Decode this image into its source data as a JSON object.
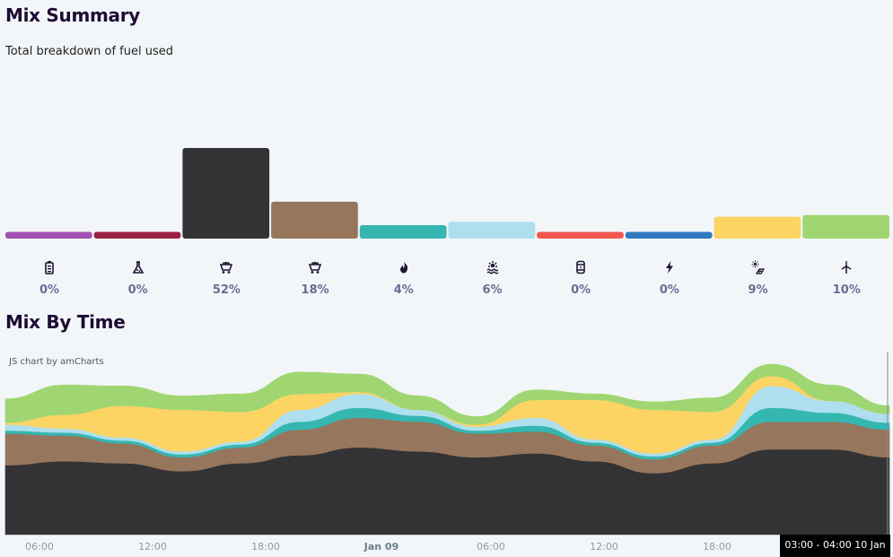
{
  "summary": {
    "title": "Mix Summary",
    "subtitle": "Total breakdown of fuel used"
  },
  "time": {
    "title": "Mix By Time",
    "credit": "JS chart by amCharts",
    "x_ticks": [
      "06:00",
      "12:00",
      "18:00",
      "Jan 09",
      "06:00",
      "12:00",
      "18:00"
    ],
    "tooltip": "03:00 - 04:00 10 Jan"
  },
  "fuels": [
    {
      "icon": "battery-icon",
      "pct": "0%",
      "color": "#a44fb3"
    },
    {
      "icon": "flask-icon",
      "pct": "0%",
      "color": "#9c2040"
    },
    {
      "icon": "coal-cart-icon",
      "pct": "52%",
      "color": "#333335"
    },
    {
      "icon": "coal-cart-icon",
      "pct": "18%",
      "color": "#96765c"
    },
    {
      "icon": "flame-icon",
      "pct": "4%",
      "color": "#34b6b1"
    },
    {
      "icon": "water-icon",
      "pct": "6%",
      "color": "#aedfee"
    },
    {
      "icon": "oil-barrel-icon",
      "pct": "0%",
      "color": "#f2584f"
    },
    {
      "icon": "lightning-icon",
      "pct": "0%",
      "color": "#2f78c0"
    },
    {
      "icon": "solar-icon",
      "pct": "9%",
      "color": "#fcd464"
    },
    {
      "icon": "wind-turbine-icon",
      "pct": "10%",
      "color": "#9fd672"
    }
  ],
  "chart_data": [
    {
      "type": "bar",
      "categories": [
        "battery",
        "other",
        "black coal",
        "brown coal",
        "gas",
        "hydro",
        "liquid fuel",
        "imports",
        "solar",
        "wind"
      ],
      "values": [
        2,
        2,
        27,
        11,
        4,
        5,
        2,
        2,
        6.5,
        7
      ],
      "colors": [
        "#a44fb3",
        "#9c2040",
        "#333335",
        "#96765c",
        "#34b6b1",
        "#aedfee",
        "#f2584f",
        "#2f78c0",
        "#fcd464",
        "#9fd672"
      ],
      "ylim": [
        0,
        31
      ],
      "grid": false,
      "legend": "none"
    },
    {
      "type": "area",
      "stacked": true,
      "x": [
        "03:00",
        "06:00",
        "09:00",
        "12:00",
        "15:00",
        "18:00",
        "21:00",
        "Jan 09 00:00",
        "03:00",
        "06:00",
        "09:00",
        "12:00",
        "15:00",
        "18:00",
        "21:00",
        "Jan 10 03:00"
      ],
      "series": [
        {
          "color": "#333335",
          "values": [
            70,
            74,
            72,
            64,
            72,
            80,
            88,
            84,
            78,
            82,
            74,
            62,
            72,
            86,
            86,
            78
          ]
        },
        {
          "color": "#96765c",
          "values": [
            32,
            26,
            20,
            14,
            16,
            26,
            30,
            30,
            24,
            22,
            16,
            14,
            18,
            28,
            28,
            28
          ]
        },
        {
          "color": "#34b6b1",
          "values": [
            3,
            3,
            3,
            3,
            3,
            8,
            10,
            6,
            3,
            6,
            3,
            3,
            3,
            14,
            9,
            7
          ]
        },
        {
          "color": "#aedfee",
          "values": [
            6,
            4,
            3,
            3,
            3,
            12,
            14,
            6,
            4,
            8,
            3,
            3,
            3,
            22,
            12,
            9
          ]
        },
        {
          "color": "#fcd464",
          "values": [
            2,
            14,
            32,
            42,
            30,
            16,
            2,
            0,
            2,
            18,
            40,
            44,
            28,
            10,
            0,
            0
          ]
        },
        {
          "color": "#9fd672",
          "values": [
            24,
            30,
            20,
            14,
            18,
            22,
            18,
            14,
            8,
            10,
            6,
            8,
            14,
            12,
            16,
            8
          ]
        }
      ],
      "legend": "none"
    }
  ]
}
